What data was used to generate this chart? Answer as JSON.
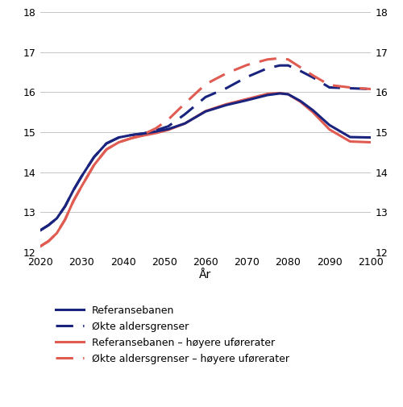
{
  "title": "",
  "xlabel": "År",
  "ylim": [
    12,
    18
  ],
  "xlim": [
    2020,
    2100
  ],
  "yticks": [
    12,
    13,
    14,
    15,
    16,
    17,
    18
  ],
  "xticks": [
    2020,
    2030,
    2040,
    2050,
    2060,
    2070,
    2080,
    2090,
    2100
  ],
  "referansebanen": {
    "x": [
      2020,
      2022,
      2024,
      2026,
      2028,
      2030,
      2033,
      2036,
      2039,
      2042,
      2045,
      2048,
      2051,
      2055,
      2060,
      2065,
      2070,
      2075,
      2078,
      2080,
      2083,
      2086,
      2090,
      2095,
      2100
    ],
    "y": [
      12.55,
      12.68,
      12.85,
      13.15,
      13.55,
      13.9,
      14.38,
      14.72,
      14.87,
      14.93,
      14.97,
      15.02,
      15.08,
      15.22,
      15.52,
      15.68,
      15.8,
      15.93,
      15.97,
      15.95,
      15.78,
      15.55,
      15.18,
      14.88,
      14.87
    ]
  },
  "okte_aldersgrenser": {
    "x": [
      2020,
      2022,
      2024,
      2026,
      2028,
      2030,
      2033,
      2036,
      2039,
      2042,
      2045,
      2048,
      2051,
      2055,
      2060,
      2065,
      2070,
      2075,
      2078,
      2080,
      2083,
      2086,
      2090,
      2095,
      2100
    ],
    "y": [
      12.55,
      12.68,
      12.85,
      13.15,
      13.55,
      13.9,
      14.38,
      14.72,
      14.87,
      14.93,
      14.97,
      15.05,
      15.15,
      15.45,
      15.88,
      16.1,
      16.38,
      16.6,
      16.67,
      16.67,
      16.53,
      16.37,
      16.12,
      16.1,
      16.08
    ]
  },
  "referansebanen_hoyere": {
    "x": [
      2020,
      2022,
      2024,
      2026,
      2028,
      2030,
      2033,
      2036,
      2039,
      2042,
      2045,
      2048,
      2051,
      2055,
      2060,
      2065,
      2070,
      2075,
      2078,
      2080,
      2083,
      2086,
      2090,
      2095,
      2100
    ],
    "y": [
      12.15,
      12.28,
      12.48,
      12.82,
      13.28,
      13.65,
      14.18,
      14.57,
      14.75,
      14.85,
      14.92,
      14.98,
      15.06,
      15.22,
      15.53,
      15.7,
      15.83,
      15.96,
      15.98,
      15.95,
      15.76,
      15.5,
      15.07,
      14.77,
      14.75
    ]
  },
  "okte_aldersgrenser_hoyere": {
    "x": [
      2020,
      2022,
      2024,
      2026,
      2028,
      2030,
      2033,
      2036,
      2039,
      2042,
      2045,
      2048,
      2051,
      2055,
      2060,
      2065,
      2070,
      2075,
      2078,
      2080,
      2083,
      2086,
      2090,
      2095,
      2100
    ],
    "y": [
      12.15,
      12.28,
      12.48,
      12.82,
      13.28,
      13.65,
      14.18,
      14.57,
      14.75,
      14.85,
      14.95,
      15.1,
      15.32,
      15.72,
      16.2,
      16.47,
      16.68,
      16.82,
      16.85,
      16.82,
      16.62,
      16.42,
      16.18,
      16.12,
      16.08
    ]
  },
  "color_dark": "#1a237e",
  "color_red": "#e05c52",
  "linewidth": 2.2,
  "legend_labels": [
    "Referansebanen",
    "Økte aldersgrenser",
    "Referansebanen – høyere uførerater",
    "Økte aldersgrenser – høyere uførerater"
  ],
  "figsize": [
    5.0,
    5.05
  ],
  "dpi": 100
}
